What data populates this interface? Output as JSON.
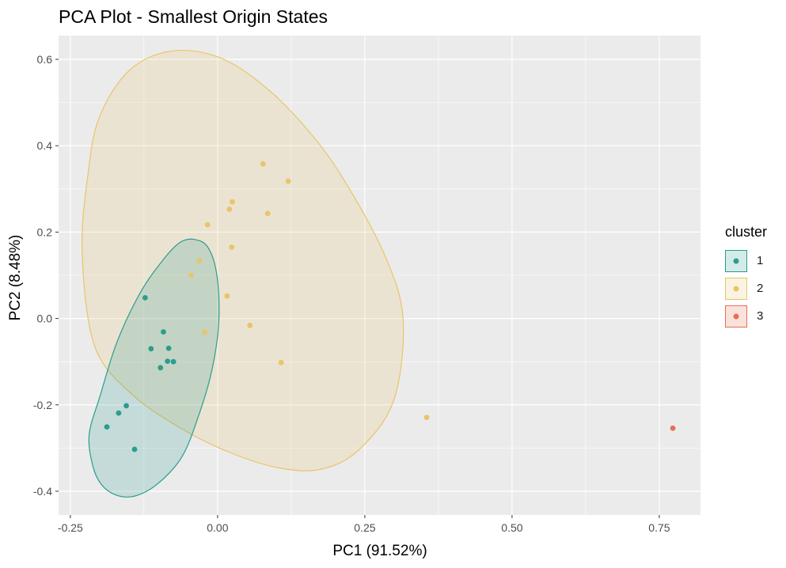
{
  "chart_data": {
    "type": "scatter",
    "title": "PCA Plot - Smallest Origin States",
    "xlabel": "PC1 (91.52%)",
    "ylabel": "PC2 (8.48%)",
    "xlim": [
      -0.27,
      0.82
    ],
    "ylim": [
      -0.455,
      0.655
    ],
    "x_ticks": [
      -0.25,
      0.0,
      0.25,
      0.5,
      0.75
    ],
    "x_tick_labels": [
      "-0.25",
      "0.00",
      "0.25",
      "0.50",
      "0.75"
    ],
    "y_ticks": [
      -0.4,
      -0.2,
      0.0,
      0.2,
      0.4,
      0.6
    ],
    "y_tick_labels": [
      "-0.4",
      "-0.2",
      "0.0",
      "0.2",
      "0.4",
      "0.6"
    ],
    "grid": true,
    "legend": {
      "title": "cluster",
      "position": "right",
      "entries": [
        {
          "label": "1",
          "color": "#2a9d8f"
        },
        {
          "label": "2",
          "color": "#e9c46a"
        },
        {
          "label": "3",
          "color": "#e76f51"
        }
      ]
    },
    "series": [
      {
        "name": "1",
        "color": "#2a9d8f",
        "points": [
          [
            -0.123,
            0.048
          ],
          [
            -0.092,
            -0.031
          ],
          [
            -0.113,
            -0.07
          ],
          [
            -0.083,
            -0.069
          ],
          [
            -0.085,
            -0.099
          ],
          [
            -0.075,
            -0.1
          ],
          [
            -0.097,
            -0.114
          ],
          [
            -0.155,
            -0.202
          ],
          [
            -0.168,
            -0.219
          ],
          [
            -0.188,
            -0.251
          ],
          [
            -0.141,
            -0.303
          ]
        ],
        "ellipse": [
          [
            -0.212,
            -0.341
          ],
          [
            -0.197,
            -0.385
          ],
          [
            -0.172,
            -0.409
          ],
          [
            -0.14,
            -0.411
          ],
          [
            -0.101,
            -0.382
          ],
          [
            -0.06,
            -0.319
          ],
          [
            -0.032,
            -0.224
          ],
          [
            -0.01,
            -0.122
          ],
          [
            0.002,
            -0.009
          ],
          [
            -0.001,
            0.099
          ],
          [
            -0.016,
            0.164
          ],
          [
            -0.039,
            0.183
          ],
          [
            -0.064,
            0.176
          ],
          [
            -0.093,
            0.135
          ],
          [
            -0.132,
            0.058
          ],
          [
            -0.171,
            -0.055
          ],
          [
            -0.199,
            -0.177
          ],
          [
            -0.218,
            -0.268
          ],
          [
            -0.212,
            -0.341
          ]
        ]
      },
      {
        "name": "2",
        "color": "#e9c46a",
        "points": [
          [
            0.077,
            0.358
          ],
          [
            0.12,
            0.318
          ],
          [
            0.025,
            0.27
          ],
          [
            0.02,
            0.253
          ],
          [
            0.085,
            0.243
          ],
          [
            -0.017,
            0.217
          ],
          [
            0.024,
            0.165
          ],
          [
            -0.031,
            0.134
          ],
          [
            -0.045,
            0.1
          ],
          [
            0.016,
            0.052
          ],
          [
            0.055,
            -0.016
          ],
          [
            -0.022,
            -0.032
          ],
          [
            0.108,
            -0.102
          ],
          [
            0.355,
            -0.229
          ]
        ],
        "ellipse": [
          [
            -0.22,
            0.334
          ],
          [
            -0.201,
            0.465
          ],
          [
            -0.151,
            0.573
          ],
          [
            -0.08,
            0.619
          ],
          [
            0.002,
            0.605
          ],
          [
            0.08,
            0.537
          ],
          [
            0.154,
            0.435
          ],
          [
            0.215,
            0.32
          ],
          [
            0.285,
            0.143
          ],
          [
            0.315,
            -0.004
          ],
          [
            0.299,
            -0.19
          ],
          [
            0.24,
            -0.304
          ],
          [
            0.176,
            -0.349
          ],
          [
            0.104,
            -0.346
          ],
          [
            0.026,
            -0.313
          ],
          [
            -0.055,
            -0.26
          ],
          [
            -0.146,
            -0.175
          ],
          [
            -0.209,
            -0.063
          ],
          [
            -0.23,
            0.153
          ],
          [
            -0.22,
            0.334
          ]
        ]
      },
      {
        "name": "3",
        "color": "#e76f51",
        "points": [
          [
            0.773,
            -0.254
          ]
        ]
      }
    ]
  }
}
